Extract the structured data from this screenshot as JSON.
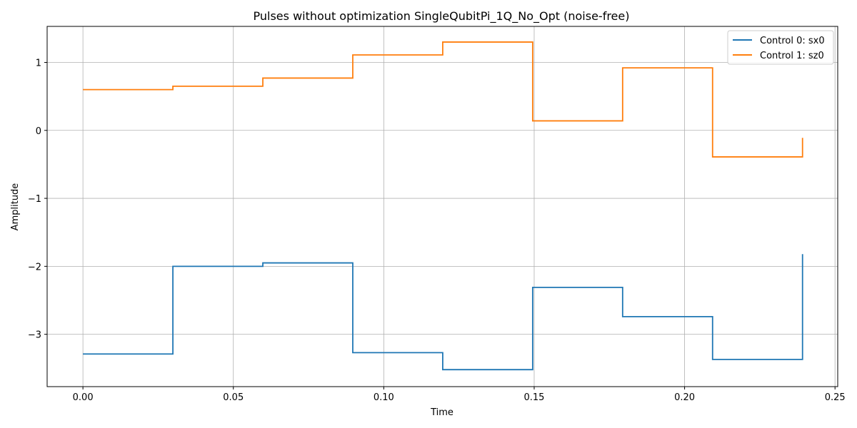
{
  "chart_data": {
    "type": "line",
    "title": "Pulses without optimization SingleQubitPi_1Q_No_Opt (noise-free)",
    "xlabel": "Time",
    "ylabel": "Amplitude",
    "xlim": [
      -0.0119,
      0.2509
    ],
    "ylim": [
      -3.77,
      1.53
    ],
    "xticks": [
      0.0,
      0.05,
      0.1,
      0.15,
      0.2,
      0.25
    ],
    "xtick_labels": [
      "0.00",
      "0.05",
      "0.10",
      "0.15",
      "0.20",
      "0.25"
    ],
    "yticks": [
      1,
      0,
      -1,
      -2,
      -3
    ],
    "ytick_labels": [
      "1",
      "0",
      "−1",
      "−2",
      "−3"
    ],
    "grid": true,
    "legend_position": "top-right",
    "step": "post",
    "x": [
      0.0,
      0.0299,
      0.0598,
      0.0897,
      0.1196,
      0.1495,
      0.1794,
      0.2093,
      0.2392
    ],
    "series": [
      {
        "name": "Control 0: sx0",
        "color": "#1f77b4",
        "values": [
          -3.29,
          -2.0,
          -1.95,
          -3.27,
          -3.52,
          -2.31,
          -2.74,
          -3.37,
          -1.82
        ]
      },
      {
        "name": "Control 1: sz0",
        "color": "#ff7f0e",
        "values": [
          0.6,
          0.65,
          0.77,
          1.11,
          1.3,
          0.14,
          0.92,
          -0.39,
          -0.11
        ]
      }
    ]
  }
}
